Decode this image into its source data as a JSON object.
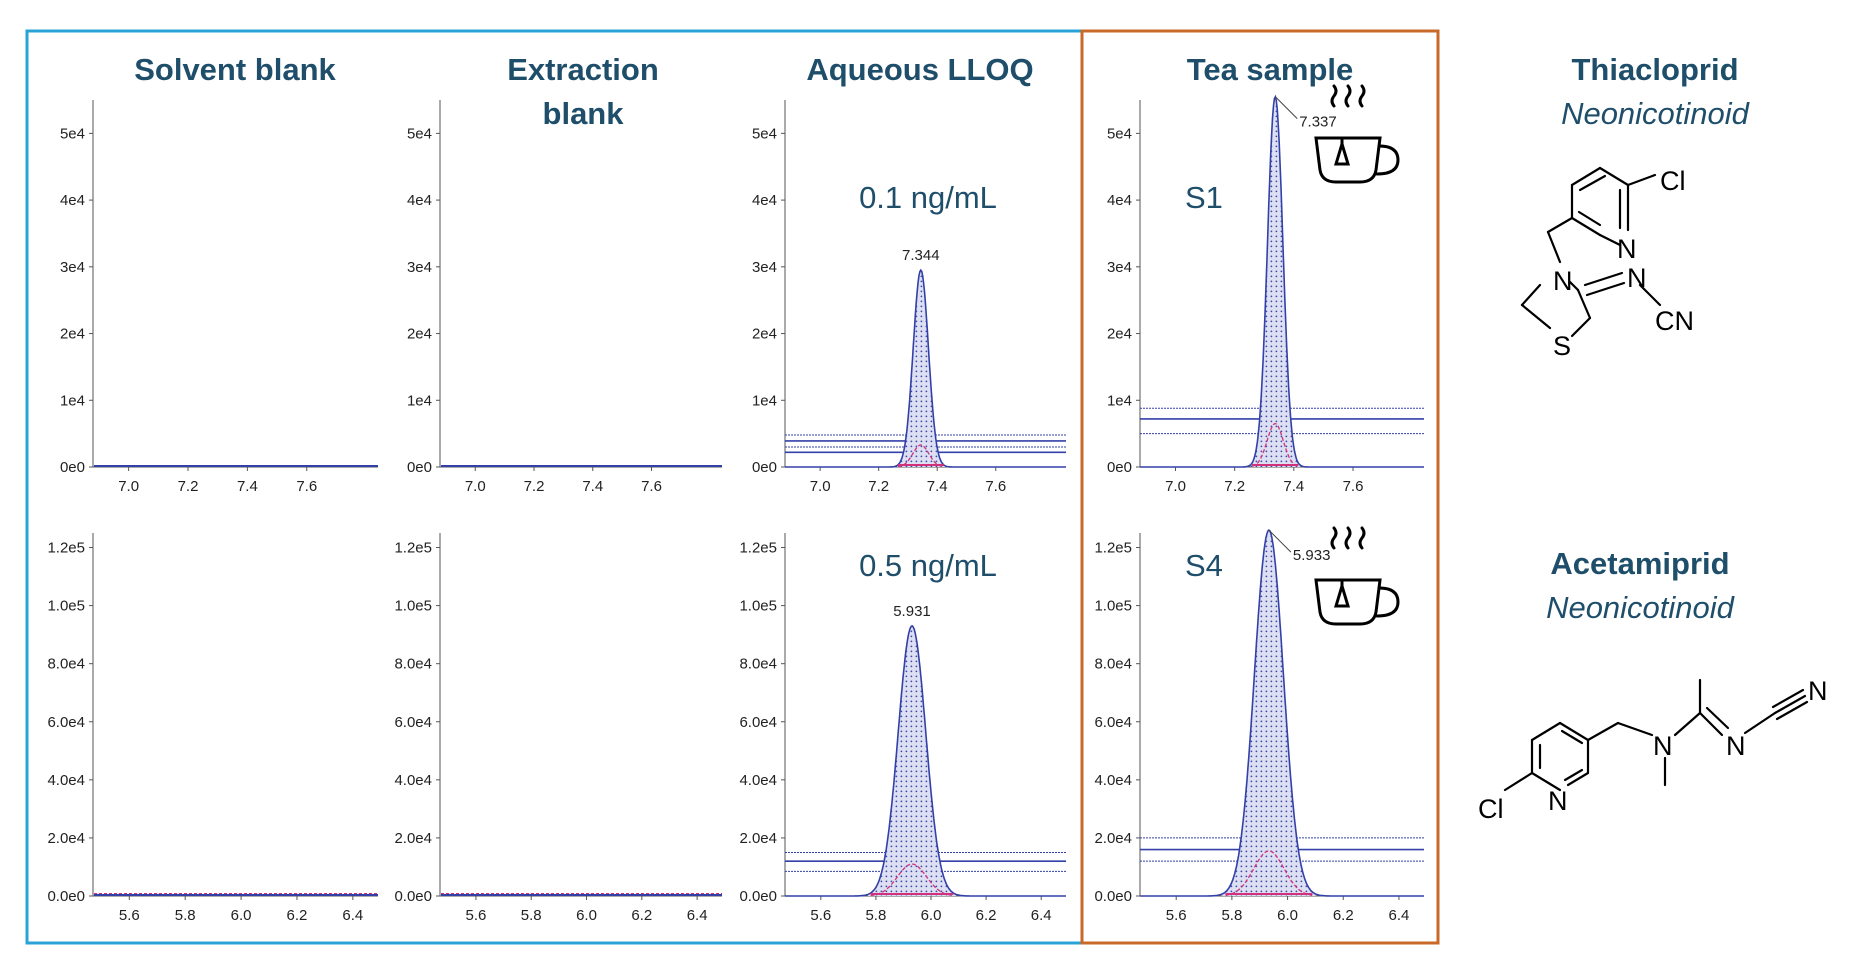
{
  "headers": {
    "solvent_blank": "Solvent blank",
    "extraction_blank": "Extraction blank",
    "aqueous_lloq": "Aqueous LLOQ",
    "tea_sample": "Tea sample"
  },
  "compounds": [
    {
      "name": "Thiacloprid",
      "class": "Neonicotinoid",
      "atoms": {
        "cl": "Cl",
        "n_pyridine": "N",
        "n_ring": "N",
        "n_imine": "N",
        "cn": "CN",
        "s": "S"
      }
    },
    {
      "name": "Acetamiprid",
      "class": "Neonicotinoid",
      "atoms": {
        "cl": "Cl",
        "n_pyridine": "N",
        "n_amine": "N",
        "n_imine": "N",
        "n_nitrile": "N"
      }
    }
  ],
  "colors": {
    "blue_frame": "#29a3d6",
    "orange_frame": "#c8692a",
    "peak_outline": "#3340a8",
    "baseline_line": "#3340a8",
    "qualifier": "#d2327a",
    "text_accent": "#1f4e6b"
  },
  "chart_data": [
    {
      "type": "line",
      "panel": "Solvent blank",
      "compound": "Thiacloprid",
      "x_ticks": [
        "7.0",
        "7.2",
        "7.4",
        "7.6"
      ],
      "y_ticks": [
        "0e0",
        "1e4",
        "2e4",
        "3e4",
        "4e4",
        "5e4"
      ],
      "xlim": [
        6.88,
        7.84
      ],
      "ylim": [
        0,
        55000
      ],
      "concentration": "",
      "peak_label": "",
      "peak_rt": null,
      "peak_height": null,
      "peak_sigma": 0.03,
      "qualifier_height": 0,
      "level_lines": []
    },
    {
      "type": "line",
      "panel": "Extraction blank",
      "compound": "Thiacloprid",
      "x_ticks": [
        "7.0",
        "7.2",
        "7.4",
        "7.6"
      ],
      "y_ticks": [
        "0e0",
        "1e4",
        "2e4",
        "3e4",
        "4e4",
        "5e4"
      ],
      "xlim": [
        6.88,
        7.84
      ],
      "ylim": [
        0,
        55000
      ],
      "concentration": "",
      "peak_label": "",
      "peak_rt": null,
      "peak_height": null,
      "peak_sigma": 0.03,
      "qualifier_height": 0,
      "level_lines": []
    },
    {
      "type": "line",
      "panel": "Aqueous LLOQ",
      "compound": "Thiacloprid",
      "x_ticks": [
        "7.0",
        "7.2",
        "7.4",
        "7.6"
      ],
      "y_ticks": [
        "0e0",
        "1e4",
        "2e4",
        "3e4",
        "4e4",
        "5e4"
      ],
      "xlim": [
        6.88,
        7.84
      ],
      "ylim": [
        0,
        55000
      ],
      "concentration": "0.1 ng/mL",
      "peak_label": "7.344",
      "peak_rt": 7.344,
      "peak_height": 29500,
      "peak_sigma": 0.026,
      "qualifier_height": 3300,
      "level_lines": [
        4800,
        3900,
        3000,
        2200
      ]
    },
    {
      "type": "line",
      "panel": "Tea sample",
      "compound": "Thiacloprid",
      "x_ticks": [
        "7.0",
        "7.2",
        "7.4",
        "7.6"
      ],
      "y_ticks": [
        "0e0",
        "1e4",
        "2e4",
        "3e4",
        "4e4",
        "5e4"
      ],
      "xlim": [
        6.88,
        7.84
      ],
      "ylim": [
        0,
        55000
      ],
      "concentration": "S1",
      "peak_label": "7.337",
      "peak_rt": 7.337,
      "peak_height": 55500,
      "peak_sigma": 0.026,
      "qualifier_height": 6500,
      "level_lines": [
        8800,
        7200,
        5000
      ]
    },
    {
      "type": "line",
      "panel": "Solvent blank",
      "compound": "Acetamiprid",
      "x_ticks": [
        "5.6",
        "5.8",
        "6.0",
        "6.2",
        "6.4"
      ],
      "y_ticks": [
        "0.0e0",
        "2.0e4",
        "4.0e4",
        "6.0e4",
        "8.0e4",
        "1.0e5",
        "1.2e5"
      ],
      "xlim": [
        5.47,
        6.49
      ],
      "ylim": [
        0,
        125000
      ],
      "concentration": "",
      "peak_label": "",
      "peak_rt": null,
      "peak_height": null,
      "peak_sigma": 0.05,
      "qualifier_height": 0,
      "level_lines": []
    },
    {
      "type": "line",
      "panel": "Extraction blank",
      "compound": "Acetamiprid",
      "x_ticks": [
        "5.6",
        "5.8",
        "6.0",
        "6.2",
        "6.4"
      ],
      "y_ticks": [
        "0.0e0",
        "2.0e4",
        "4.0e4",
        "6.0e4",
        "8.0e4",
        "1.0e5",
        "1.2e5"
      ],
      "xlim": [
        5.47,
        6.49
      ],
      "ylim": [
        0,
        125000
      ],
      "concentration": "",
      "peak_label": "",
      "peak_rt": null,
      "peak_height": null,
      "peak_sigma": 0.05,
      "qualifier_height": 0,
      "level_lines": []
    },
    {
      "type": "line",
      "panel": "Aqueous LLOQ",
      "compound": "Acetamiprid",
      "x_ticks": [
        "5.6",
        "5.8",
        "6.0",
        "6.2",
        "6.4"
      ],
      "y_ticks": [
        "0.0e0",
        "2.0e4",
        "4.0e4",
        "6.0e4",
        "8.0e4",
        "1.0e5",
        "1.2e5"
      ],
      "xlim": [
        5.47,
        6.49
      ],
      "ylim": [
        0,
        125000
      ],
      "concentration": "0.5 ng/mL",
      "peak_label": "5.931",
      "peak_rt": 5.931,
      "peak_height": 93000,
      "peak_sigma": 0.05,
      "qualifier_height": 11000,
      "level_lines": [
        15000,
        12000,
        8500
      ]
    },
    {
      "type": "line",
      "panel": "Tea sample",
      "compound": "Acetamiprid",
      "x_ticks": [
        "5.6",
        "5.8",
        "6.0",
        "6.2",
        "6.4"
      ],
      "y_ticks": [
        "0.0e0",
        "2.0e4",
        "4.0e4",
        "6.0e4",
        "8.0e4",
        "1.0e5",
        "1.2e5"
      ],
      "xlim": [
        5.47,
        6.49
      ],
      "ylim": [
        0,
        125000
      ],
      "concentration": "S4",
      "peak_label": "5.933",
      "peak_rt": 5.933,
      "peak_height": 126000,
      "peak_sigma": 0.052,
      "qualifier_height": 15500,
      "level_lines": [
        20000,
        16000,
        12000
      ]
    }
  ]
}
